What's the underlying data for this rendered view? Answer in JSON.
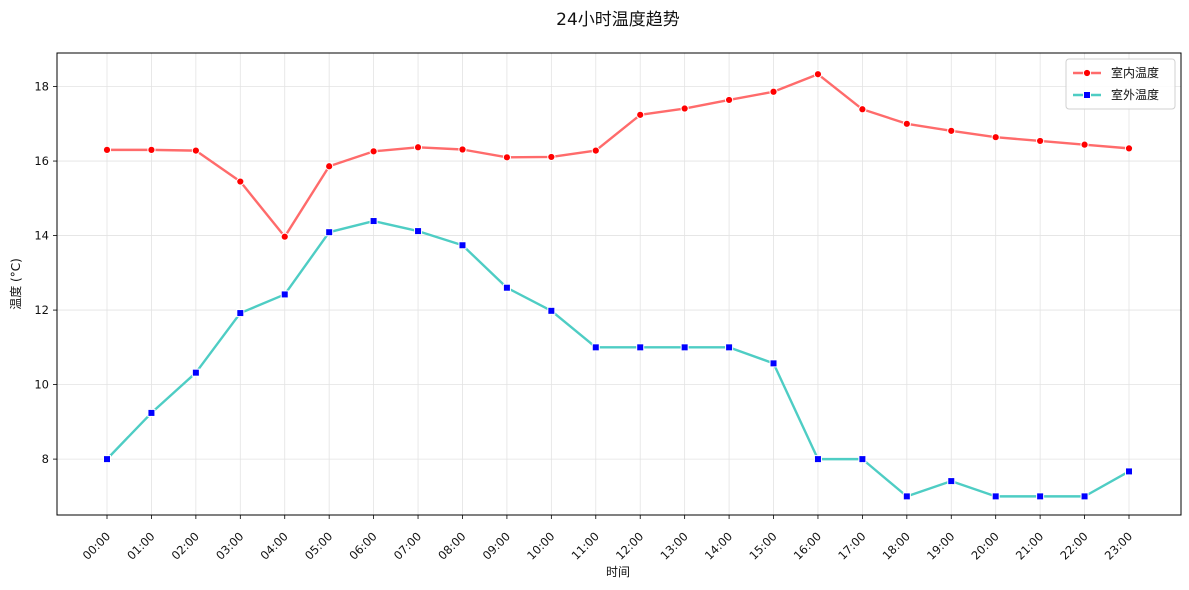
{
  "chart_data": {
    "type": "line",
    "title": "24小时温度趋势",
    "xlabel": "时间",
    "ylabel": "温度 (°C)",
    "categories": [
      "00:00",
      "01:00",
      "02:00",
      "03:00",
      "04:00",
      "05:00",
      "06:00",
      "07:00",
      "08:00",
      "09:00",
      "10:00",
      "11:00",
      "12:00",
      "13:00",
      "14:00",
      "15:00",
      "16:00",
      "17:00",
      "18:00",
      "19:00",
      "20:00",
      "21:00",
      "22:00",
      "23:00"
    ],
    "ylim": [
      6.5,
      18.9
    ],
    "yticks": [
      8,
      10,
      12,
      14,
      16,
      18
    ],
    "grid": true,
    "legend_position": "top-right",
    "series": [
      {
        "name": "室内温度",
        "color": "#ff6b6b",
        "marker": "circle",
        "marker_color": "#ff0000",
        "values": [
          16.3,
          16.3,
          16.28,
          15.45,
          13.97,
          15.86,
          16.26,
          16.37,
          16.31,
          16.1,
          16.11,
          16.28,
          17.24,
          17.41,
          17.64,
          17.86,
          18.33,
          17.39,
          17.0,
          16.81,
          16.64,
          16.54,
          16.44,
          16.34
        ]
      },
      {
        "name": "室外温度",
        "color": "#4ecdc4",
        "marker": "square",
        "marker_color": "#0000ff",
        "values": [
          8.0,
          9.24,
          10.32,
          11.92,
          12.42,
          14.09,
          14.39,
          14.12,
          13.74,
          12.6,
          11.98,
          11.0,
          11.0,
          11.0,
          11.0,
          10.57,
          8.0,
          8.0,
          7.0,
          7.41,
          7.0,
          7.0,
          7.0,
          7.67
        ]
      }
    ]
  }
}
